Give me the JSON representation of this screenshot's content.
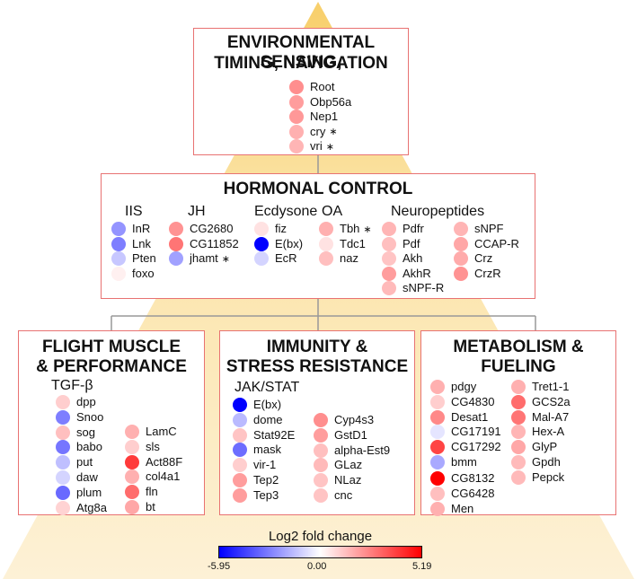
{
  "colors": {
    "pyramid": "#fbe3a6",
    "pyramid_edge": "#f2c65a",
    "box_border": "#e87272",
    "connector": "#999999",
    "scale_min": "#0000ff",
    "scale_mid": "#ffffff",
    "scale_max": "#ff0000"
  },
  "boxes": {
    "env": {
      "title_line1": "ENVIRONMENTAL SENSING,",
      "title_line2": "TIMING, NAVIGATION",
      "genes": [
        {
          "name": "Root",
          "value": 2.3,
          "star": false
        },
        {
          "name": "Obp56a",
          "value": 2.0,
          "star": false
        },
        {
          "name": "Nep1",
          "value": 2.1,
          "star": false
        },
        {
          "name": "cry",
          "value": 1.6,
          "star": true
        },
        {
          "name": "vri",
          "value": 1.5,
          "star": true
        }
      ]
    },
    "hormonal": {
      "title": "HORMONAL CONTROL",
      "groups": [
        {
          "title": "IIS",
          "genes": [
            {
              "name": "InR",
              "value": -2.5,
              "star": false
            },
            {
              "name": "Lnk",
              "value": -3.0,
              "star": false
            },
            {
              "name": "Pten",
              "value": -1.3,
              "star": false
            },
            {
              "name": "foxo",
              "value": 0.3,
              "star": false
            }
          ]
        },
        {
          "title": "JH",
          "genes": [
            {
              "name": "CG2680",
              "value": 2.2,
              "star": false
            },
            {
              "name": "CG11852",
              "value": 2.8,
              "star": false
            },
            {
              "name": "jhamt",
              "value": -2.2,
              "star": true
            }
          ]
        },
        {
          "title": "Ecdysone",
          "genes": [
            {
              "name": "fiz",
              "value": 0.6,
              "star": false
            },
            {
              "name": "E(bx)",
              "value": -5.95,
              "star": false
            },
            {
              "name": "EcR",
              "value": -1.0,
              "star": false
            }
          ]
        },
        {
          "title": "OA",
          "genes": [
            {
              "name": "Tbh",
              "value": 1.6,
              "star": true
            },
            {
              "name": "Tdc1",
              "value": 0.6,
              "star": false
            },
            {
              "name": "naz",
              "value": 1.3,
              "star": false
            }
          ]
        },
        {
          "title": "Neuropeptides",
          "genes": [
            {
              "name": "Pdfr",
              "value": 1.5,
              "star": false
            },
            {
              "name": "Pdf",
              "value": 1.3,
              "star": false
            },
            {
              "name": "Akh",
              "value": 1.2,
              "star": false
            },
            {
              "name": "AkhR",
              "value": 2.0,
              "star": false
            },
            {
              "name": "sNPF-R",
              "value": 1.4,
              "star": false
            },
            {
              "name": "sNPF",
              "value": 1.5,
              "star": false
            },
            {
              "name": "CCAP-R",
              "value": 1.8,
              "star": false
            },
            {
              "name": "Crz",
              "value": 1.7,
              "star": false
            },
            {
              "name": "CrzR",
              "value": 2.2,
              "star": false
            }
          ]
        }
      ]
    },
    "flight": {
      "title_line1": "FLIGHT MUSCLE",
      "title_line2": "& PERFORMANCE",
      "group_title": "TGF-β",
      "genes": [
        {
          "name": "dpp",
          "value": 1.0,
          "star": false
        },
        {
          "name": "Snoo",
          "value": -3.0,
          "star": false
        },
        {
          "name": "sog",
          "value": 1.3,
          "star": false
        },
        {
          "name": "babo",
          "value": -3.2,
          "star": false
        },
        {
          "name": "put",
          "value": -1.5,
          "star": false
        },
        {
          "name": "daw",
          "value": -1.0,
          "star": false
        },
        {
          "name": "plum",
          "value": -3.5,
          "star": false
        },
        {
          "name": "Atg8a",
          "value": 0.9,
          "star": false
        },
        {
          "name": "LamC",
          "value": 1.6,
          "star": false
        },
        {
          "name": "sls",
          "value": 1.0,
          "star": false
        },
        {
          "name": "Act88F",
          "value": 4.0,
          "star": false
        },
        {
          "name": "col4a1",
          "value": 1.6,
          "star": false
        },
        {
          "name": "fln",
          "value": 3.0,
          "star": false
        },
        {
          "name": "bt",
          "value": 1.8,
          "star": false
        }
      ]
    },
    "immunity": {
      "title_line1": "IMMUNITY &",
      "title_line2": "STRESS RESISTANCE",
      "group_title": "JAK/STAT",
      "genes": [
        {
          "name": "E(bx)",
          "value": -5.95,
          "star": false
        },
        {
          "name": "dome",
          "value": -1.6,
          "star": false
        },
        {
          "name": "Stat92E",
          "value": 1.2,
          "star": false
        },
        {
          "name": "mask",
          "value": -3.4,
          "star": false
        },
        {
          "name": "vir-1",
          "value": 1.0,
          "star": false
        },
        {
          "name": "Tep2",
          "value": 2.0,
          "star": false
        },
        {
          "name": "Tep3",
          "value": 2.0,
          "star": false
        },
        {
          "name": "Cyp4s3",
          "value": 2.3,
          "star": false
        },
        {
          "name": "GstD1",
          "value": 2.0,
          "star": false
        },
        {
          "name": "alpha-Est9",
          "value": 1.3,
          "star": false
        },
        {
          "name": "GLaz",
          "value": 1.4,
          "star": false
        },
        {
          "name": "NLaz",
          "value": 1.2,
          "star": false
        },
        {
          "name": "cnc",
          "value": 1.2,
          "star": false
        }
      ]
    },
    "metabolism": {
      "title_line1": "METABOLISM &",
      "title_line2": "FUELING",
      "genes": [
        {
          "name": "pdgy",
          "value": 1.6,
          "star": false
        },
        {
          "name": "CG4830",
          "value": 1.0,
          "star": false
        },
        {
          "name": "Desat1",
          "value": 2.4,
          "star": false
        },
        {
          "name": "CG17191",
          "value": -0.6,
          "star": false
        },
        {
          "name": "CG17292",
          "value": 3.8,
          "star": false
        },
        {
          "name": "bmm",
          "value": -2.0,
          "star": false
        },
        {
          "name": "CG8132",
          "value": 5.19,
          "star": false
        },
        {
          "name": "CG6428",
          "value": 1.3,
          "star": false
        },
        {
          "name": "Men",
          "value": 1.6,
          "star": false
        },
        {
          "name": "Tret1-1",
          "value": 1.6,
          "star": false
        },
        {
          "name": "GCS2a",
          "value": 3.0,
          "star": false
        },
        {
          "name": "Mal-A7",
          "value": 2.8,
          "star": false
        },
        {
          "name": "Hex-A",
          "value": 1.5,
          "star": false
        },
        {
          "name": "GlyP",
          "value": 1.8,
          "star": false
        },
        {
          "name": "Gpdh",
          "value": 1.4,
          "star": false
        },
        {
          "name": "Pepck",
          "value": 1.4,
          "star": false
        }
      ]
    }
  },
  "colorbar": {
    "title": "Log2 fold change",
    "min": -5.95,
    "mid": 0.0,
    "max": 5.19,
    "min_label": "-5.95",
    "mid_label": "0.00",
    "max_label": "5.19"
  }
}
